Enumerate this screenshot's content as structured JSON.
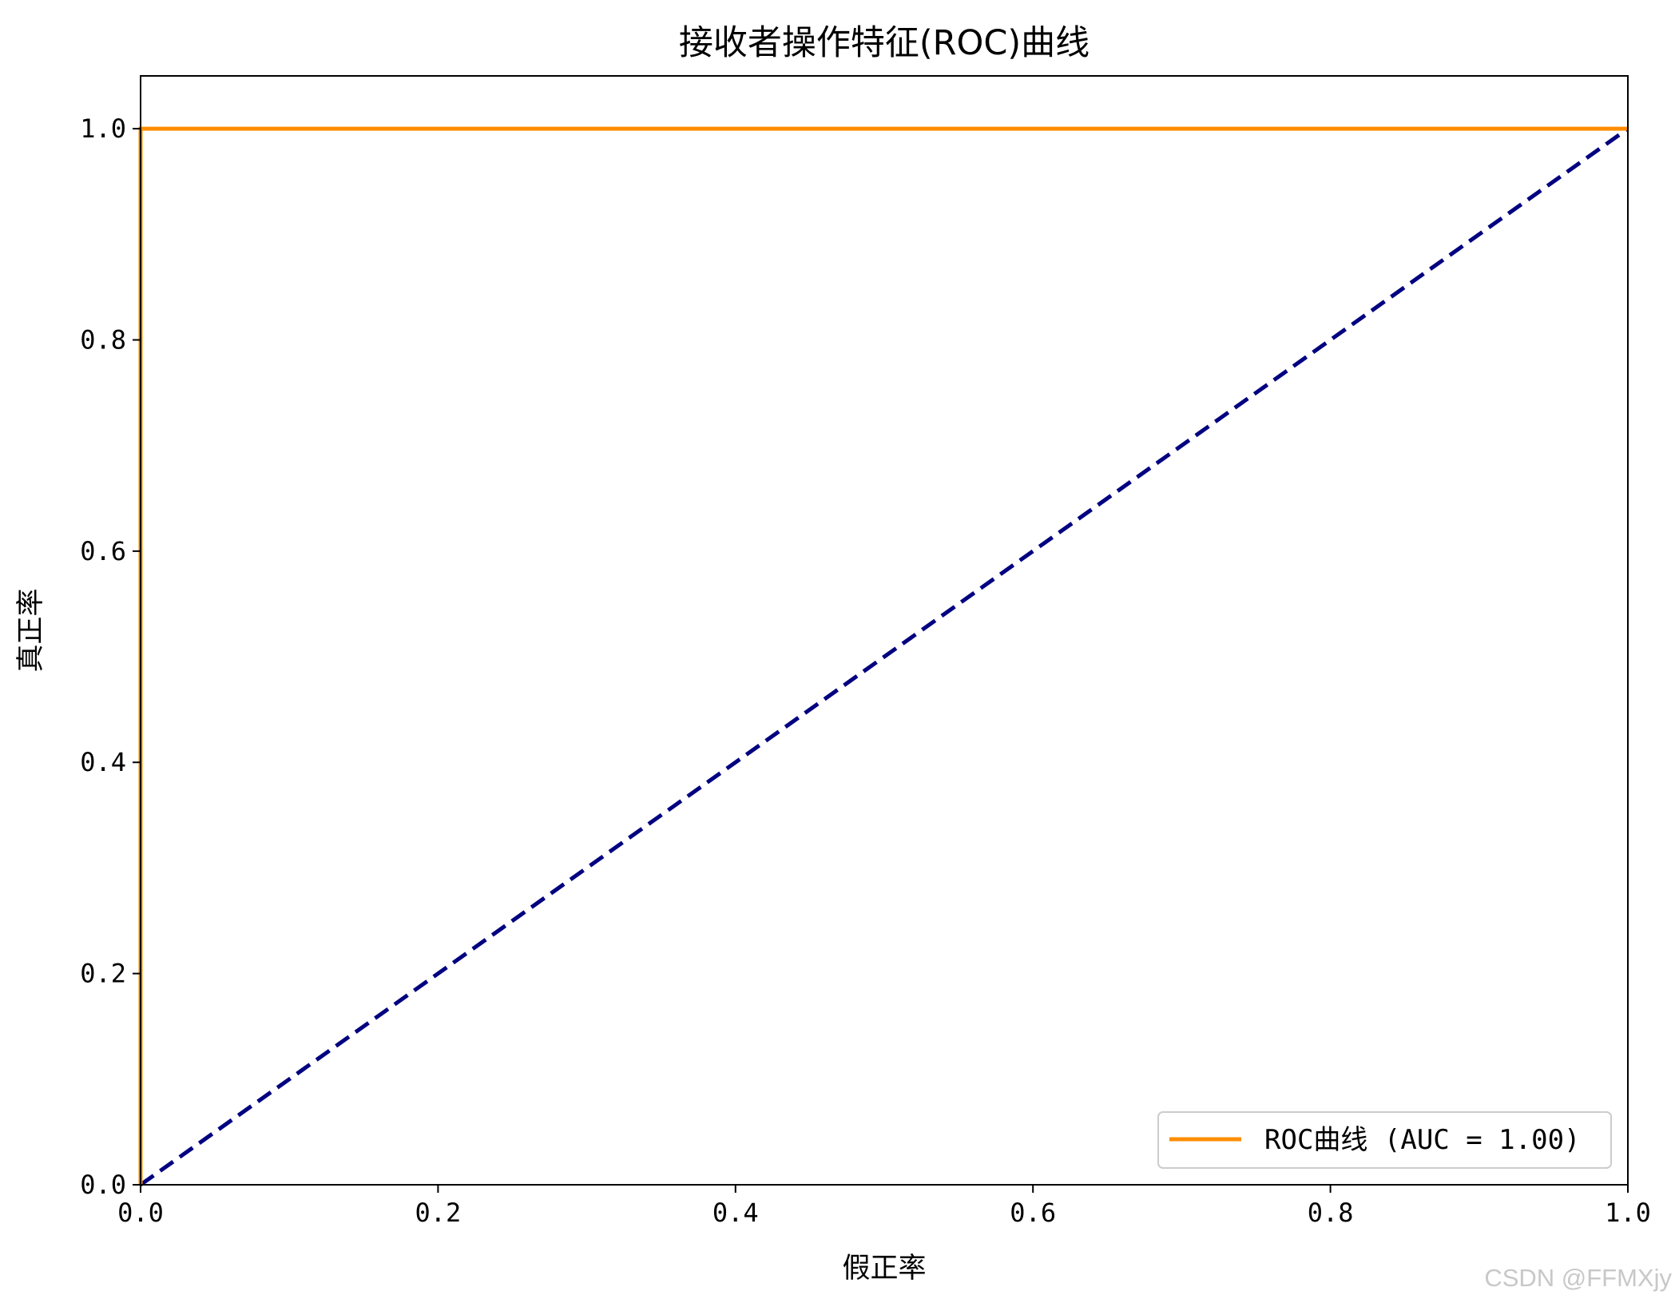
{
  "chart_data": {
    "type": "line",
    "title": "接收者操作特征(ROC)曲线",
    "xlabel": "假正率",
    "ylabel": "真正率",
    "xlim": [
      0.0,
      1.0
    ],
    "ylim": [
      0.0,
      1.05
    ],
    "xticks": [
      0.0,
      0.2,
      0.4,
      0.6,
      0.8,
      1.0
    ],
    "yticks": [
      0.0,
      0.2,
      0.4,
      0.6,
      0.8,
      1.0
    ],
    "xtick_labels": [
      "0.0",
      "0.2",
      "0.4",
      "0.6",
      "0.8",
      "1.0"
    ],
    "ytick_labels": [
      "0.0",
      "0.2",
      "0.4",
      "0.6",
      "0.8",
      "1.0"
    ],
    "grid": false,
    "legend_position": "lower-right",
    "series": [
      {
        "name": "ROC曲线 (AUC = 1.00)",
        "color": "#ff8c00",
        "line_style": "solid",
        "x": [
          0.0,
          0.0,
          1.0
        ],
        "y": [
          0.0,
          1.0,
          1.0
        ]
      },
      {
        "color": "#000080",
        "line_style": "dashed",
        "x": [
          0.0,
          1.0
        ],
        "y": [
          0.0,
          1.0
        ]
      }
    ]
  },
  "watermark": "CSDN @FFMXjy"
}
